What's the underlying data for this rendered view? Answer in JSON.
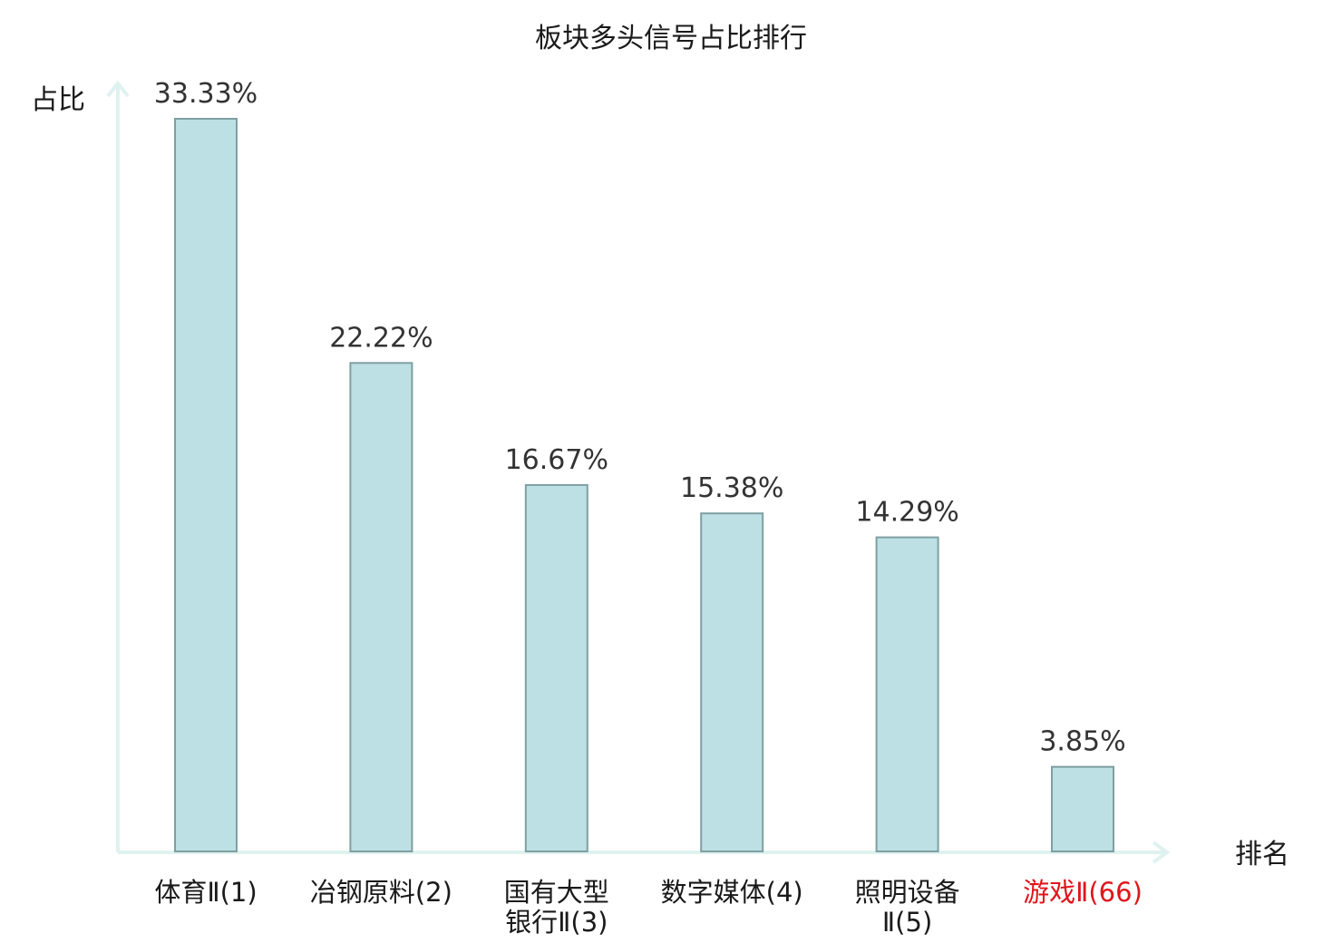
{
  "chart_data": {
    "type": "bar",
    "title": "板块多头信号占比排行",
    "xlabel": "排名",
    "ylabel": "占比",
    "categories": [
      [
        "体育Ⅱ(1)"
      ],
      [
        "冶钢原料(2)"
      ],
      [
        "国有大型",
        "银行Ⅱ(3)"
      ],
      [
        "数字媒体(4)"
      ],
      [
        "照明设备",
        "Ⅱ(5)"
      ],
      [
        "游戏Ⅱ(66)"
      ]
    ],
    "values": [
      33.33,
      22.22,
      16.67,
      15.38,
      14.29,
      3.85
    ],
    "value_labels": [
      "33.33%",
      "22.22%",
      "16.67%",
      "15.38%",
      "14.29%",
      "3.85%"
    ],
    "highlight_index": 5,
    "ylim": [
      0,
      33.33
    ],
    "grid": false,
    "legend": "none",
    "colors": {
      "bar_fill": "#bce0e3",
      "bar_stroke": "#7f9fa2",
      "axis": "#dff2ef",
      "text": "#1a1a1a",
      "value_text": "#333333",
      "highlight_text": "#e0151b"
    }
  }
}
